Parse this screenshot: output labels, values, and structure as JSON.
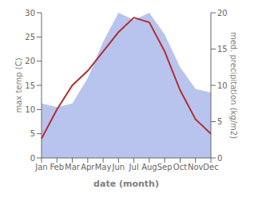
{
  "chart_data": {
    "type": "line",
    "xlabel": "date (month)",
    "ylabel": "max temp (C)",
    "y2label": "med. precipitation (kg/m2)",
    "categories": [
      "Jan",
      "Feb",
      "Mar",
      "Apr",
      "May",
      "Jun",
      "Jul",
      "Aug",
      "Sep",
      "Oct",
      "Nov",
      "Dec"
    ],
    "series": [
      {
        "type": "area",
        "color": "#b8c4ee",
        "axis": "y2",
        "values": [
          7.5,
          7,
          7.5,
          11,
          16,
          20,
          19,
          20,
          17,
          12.5,
          9.5,
          9
        ]
      },
      {
        "type": "line",
        "color": "#b03030",
        "values": [
          4,
          10,
          15,
          18,
          22,
          26,
          29,
          28,
          22,
          14,
          8,
          5
        ]
      }
    ],
    "ylim": [
      0,
      30
    ],
    "yticks": [
      0,
      5,
      10,
      15,
      20,
      25,
      30
    ],
    "y2lim": [
      0,
      20
    ],
    "y2ticks": [
      0,
      5,
      10,
      15,
      20
    ],
    "grid": false
  }
}
